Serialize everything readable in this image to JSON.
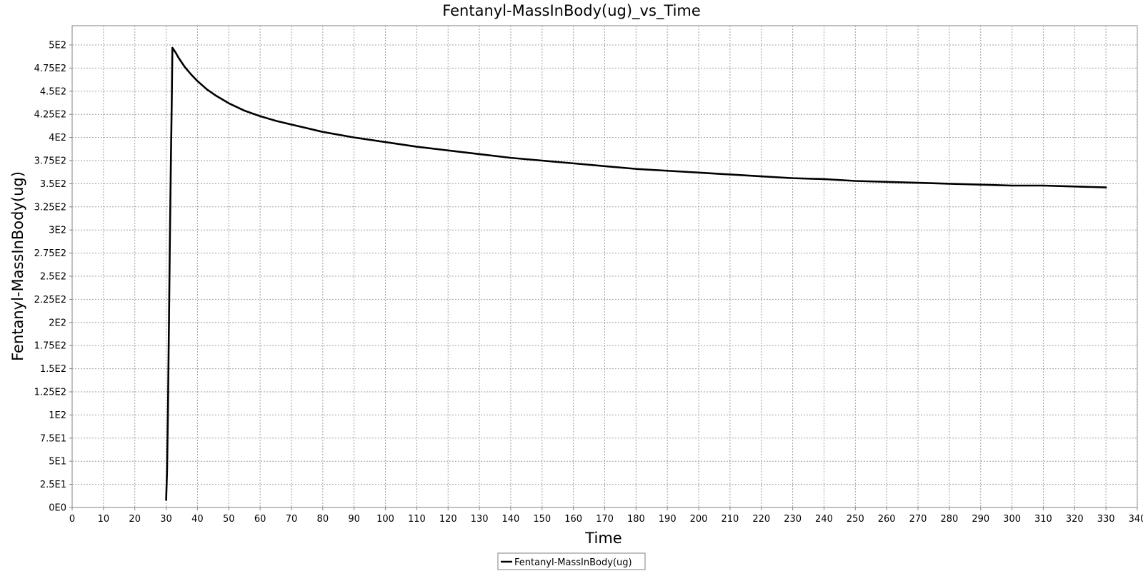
{
  "chart_data": {
    "type": "line",
    "title": "Fentanyl-MassInBody(ug)_vs_Time",
    "xlabel": "Time",
    "ylabel": "Fentanyl-MassInBody(ug)",
    "xlim": [
      0,
      340
    ],
    "ylim": [
      0,
      500
    ],
    "x_ticks": [
      0,
      10,
      20,
      30,
      40,
      50,
      60,
      70,
      80,
      90,
      100,
      110,
      120,
      130,
      140,
      150,
      160,
      170,
      180,
      190,
      200,
      210,
      220,
      230,
      240,
      250,
      260,
      270,
      280,
      290,
      300,
      310,
      320,
      330,
      340
    ],
    "x_tick_labels": [
      "0",
      "10",
      "20",
      "30",
      "40",
      "50",
      "60",
      "70",
      "80",
      "90",
      "100",
      "110",
      "120",
      "130",
      "140",
      "150",
      "160",
      "170",
      "180",
      "190",
      "200",
      "210",
      "220",
      "230",
      "240",
      "250",
      "260",
      "270",
      "280",
      "290",
      "300",
      "310",
      "320",
      "330",
      "340"
    ],
    "y_ticks": [
      0,
      25,
      50,
      75,
      100,
      125,
      150,
      175,
      200,
      225,
      250,
      275,
      300,
      325,
      350,
      375,
      400,
      425,
      450,
      475,
      500
    ],
    "y_tick_labels": [
      "0E0",
      "2.5E1",
      "5E1",
      "7.5E1",
      "1E2",
      "1.25E2",
      "1.5E2",
      "1.75E2",
      "2E2",
      "2.25E2",
      "2.5E2",
      "2.75E2",
      "3E2",
      "3.25E2",
      "3.5E2",
      "3.75E2",
      "4E2",
      "4.25E2",
      "4.5E2",
      "4.75E2",
      "5E2"
    ],
    "grid": true,
    "legend_position": "bottom-center",
    "series": [
      {
        "name": "Fentanyl-MassInBody(ug)",
        "color": "#000000",
        "x": [
          30,
          30.3,
          30.6,
          30.9,
          31.2,
          31.5,
          31.8,
          32,
          33,
          34,
          35,
          36,
          38,
          40,
          43,
          46,
          50,
          55,
          60,
          65,
          70,
          75,
          80,
          90,
          100,
          110,
          120,
          130,
          140,
          150,
          160,
          170,
          180,
          190,
          200,
          210,
          220,
          230,
          240,
          250,
          260,
          270,
          280,
          290,
          300,
          310,
          320,
          330
        ],
        "y": [
          8,
          40,
          110,
          200,
          290,
          370,
          440,
          497,
          492,
          486,
          481,
          476,
          468,
          461,
          452,
          445,
          437,
          429,
          423,
          418,
          414,
          410,
          406,
          400,
          395,
          390,
          386,
          382,
          378,
          375,
          372,
          369,
          366,
          364,
          362,
          360,
          358,
          356,
          355,
          353,
          352,
          351,
          350,
          349,
          348,
          348,
          347,
          346
        ]
      }
    ]
  }
}
